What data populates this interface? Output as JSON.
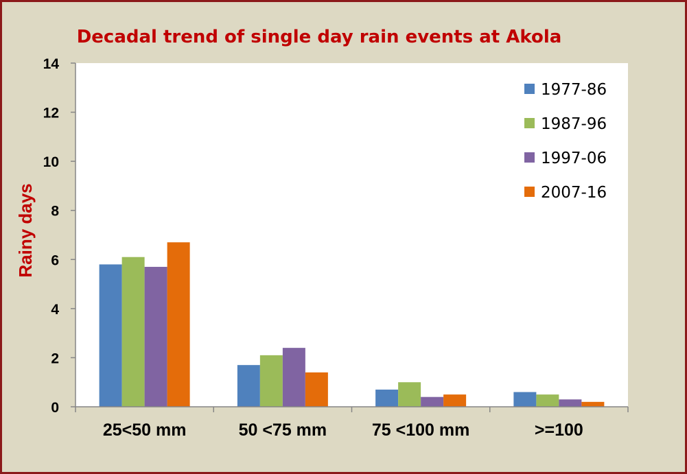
{
  "chart_data": {
    "type": "bar",
    "title": "Decadal trend of single day rain events  at Akola",
    "xlabel": "",
    "ylabel": "Rainy days",
    "ylim": [
      0,
      14
    ],
    "yticks": [
      "0",
      "2",
      "4",
      "6",
      "8",
      "10",
      "12",
      "14"
    ],
    "categories": [
      "25<50 mm",
      "50 <75 mm",
      "75 <100 mm",
      ">=100"
    ],
    "series": [
      {
        "name": "1977-86",
        "color": "#4f81bd",
        "values": [
          5.8,
          1.7,
          0.7,
          0.6
        ]
      },
      {
        "name": "1987-96",
        "color": "#9bbb59",
        "values": [
          6.1,
          2.1,
          1.0,
          0.5
        ]
      },
      {
        "name": "1997-06",
        "color": "#8064a2",
        "values": [
          5.7,
          2.4,
          0.4,
          0.3
        ]
      },
      {
        "name": "2007-16",
        "color": "#e46c0a",
        "values": [
          6.7,
          1.4,
          0.5,
          0.2
        ]
      }
    ],
    "grid": false,
    "legend_position": "top-right"
  }
}
